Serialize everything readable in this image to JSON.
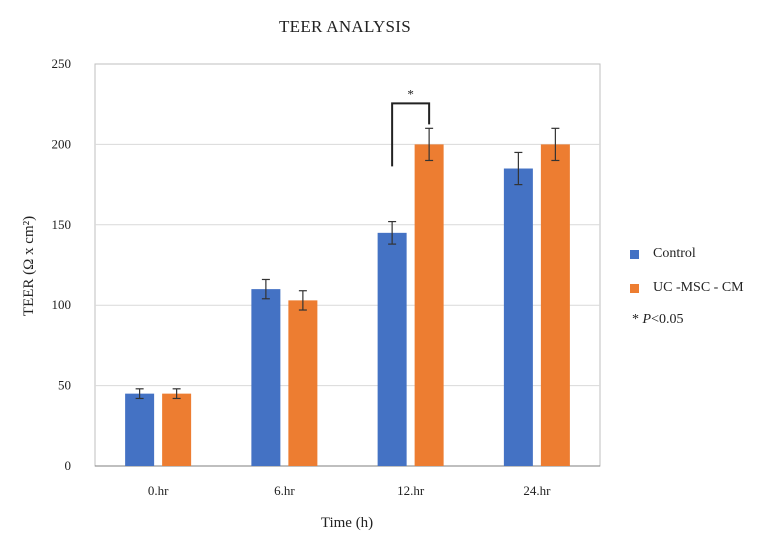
{
  "chart_data": {
    "type": "bar",
    "title": "TEER ANALYSIS",
    "xlabel": "Time (h)",
    "ylabel": "TEER (Ω x cm²)",
    "categories": [
      "0.hr",
      "6.hr",
      "12.hr",
      "24.hr"
    ],
    "ylim": [
      0,
      250
    ],
    "yticks": [
      0,
      50,
      100,
      150,
      200,
      250
    ],
    "grid": true,
    "legend_position": "right",
    "series": [
      {
        "name": "Control",
        "color": "#4472c4",
        "values": [
          45,
          110,
          145,
          185
        ],
        "errors": [
          3,
          6,
          7,
          10
        ]
      },
      {
        "name": "UC -MSC - CM",
        "color": "#ed7d31",
        "values": [
          45,
          103,
          200,
          200
        ],
        "errors": [
          3,
          6,
          10,
          10
        ]
      }
    ],
    "annotation": {
      "text": "*",
      "category": "12.hr",
      "note_prefix": "* ",
      "note_p": "P",
      "note_suffix": "<0.05"
    }
  }
}
